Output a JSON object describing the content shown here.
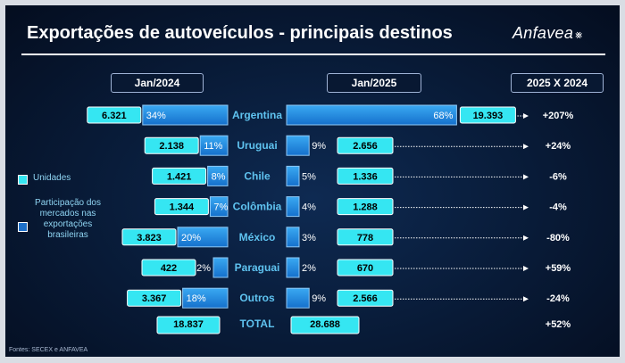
{
  "title": "Exportações de autoveículos - principais destinos",
  "logo": {
    "text": "Anfavea",
    "icon": "anfavea-mark-icon"
  },
  "headers": {
    "left": "Jan/2024",
    "right": "Jan/2025",
    "change": "2025 X 2024"
  },
  "legend": {
    "units_label": "Unidades",
    "share_label": "Participação dos mercados nas exportações brasileiras"
  },
  "source": "Fontes: SECEX e ANFAVEA",
  "colors": {
    "background": "#081a36",
    "bar_fill": "#1d8fe3",
    "value_box": "#35e6f2",
    "title_text": "#ffffff",
    "label_text": "#5fc3f0"
  },
  "chart_data": {
    "type": "bar",
    "categories": [
      "Argentina",
      "Uruguai",
      "Chile",
      "Colômbia",
      "México",
      "Paraguai",
      "Outros"
    ],
    "series": [
      {
        "name": "Jan/2024",
        "units": [
          6321,
          2138,
          1421,
          1344,
          3823,
          422,
          3367
        ],
        "units_labels": [
          "6.321",
          "2.138",
          "1.421",
          "1.344",
          "3.823",
          "422",
          "3.367"
        ],
        "share_pct": [
          34,
          11,
          8,
          7,
          20,
          2,
          18
        ],
        "share_labels": [
          "34%",
          "11%",
          "8%",
          "7%",
          "20%",
          "2%",
          "18%"
        ]
      },
      {
        "name": "Jan/2025",
        "units": [
          19393,
          2656,
          1336,
          1288,
          778,
          670,
          2566
        ],
        "units_labels": [
          "19.393",
          "2.656",
          "1.336",
          "1.288",
          "778",
          "670",
          "2.566"
        ],
        "share_pct": [
          68,
          9,
          5,
          4,
          3,
          2,
          9
        ],
        "share_labels": [
          "68%",
          "9%",
          "5%",
          "4%",
          "3%",
          "2%",
          "9%"
        ]
      }
    ],
    "change_labels": [
      "+207%",
      "+24%",
      "-6%",
      "-4%",
      "-80%",
      "+59%",
      "-24%"
    ],
    "total": {
      "label": "TOTAL",
      "jan2024": "18.837",
      "jan2025": "28.688",
      "change": "+52%"
    }
  }
}
